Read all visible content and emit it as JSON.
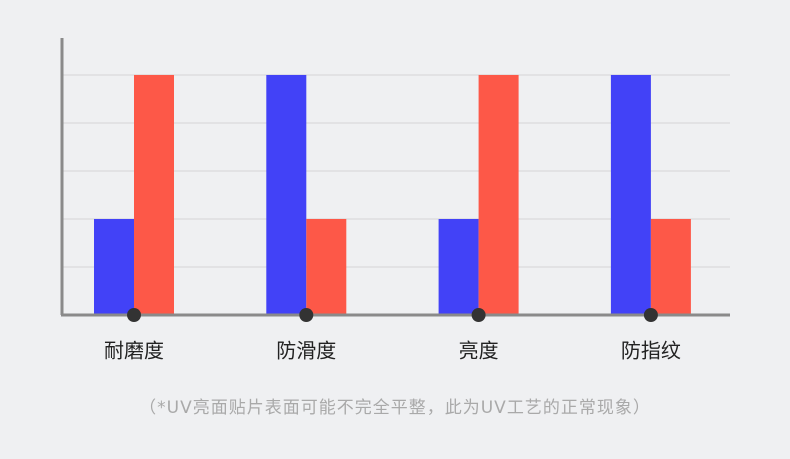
{
  "chart_data": {
    "type": "bar",
    "categories": [
      "耐磨度",
      "防滑度",
      "亮度",
      "防指纹"
    ],
    "series": [
      {
        "color": "#4242f7",
        "values": [
          2,
          5,
          2,
          5
        ]
      },
      {
        "color": "#fd5848",
        "values": [
          5,
          2,
          5,
          2
        ]
      }
    ],
    "ylim": [
      0,
      5.77
    ],
    "yticks": [
      1,
      2,
      3,
      4,
      5
    ],
    "grid": true,
    "note": "（*UV亮面贴片表面可能不完全平整，此为UV工艺的正常现象）"
  }
}
